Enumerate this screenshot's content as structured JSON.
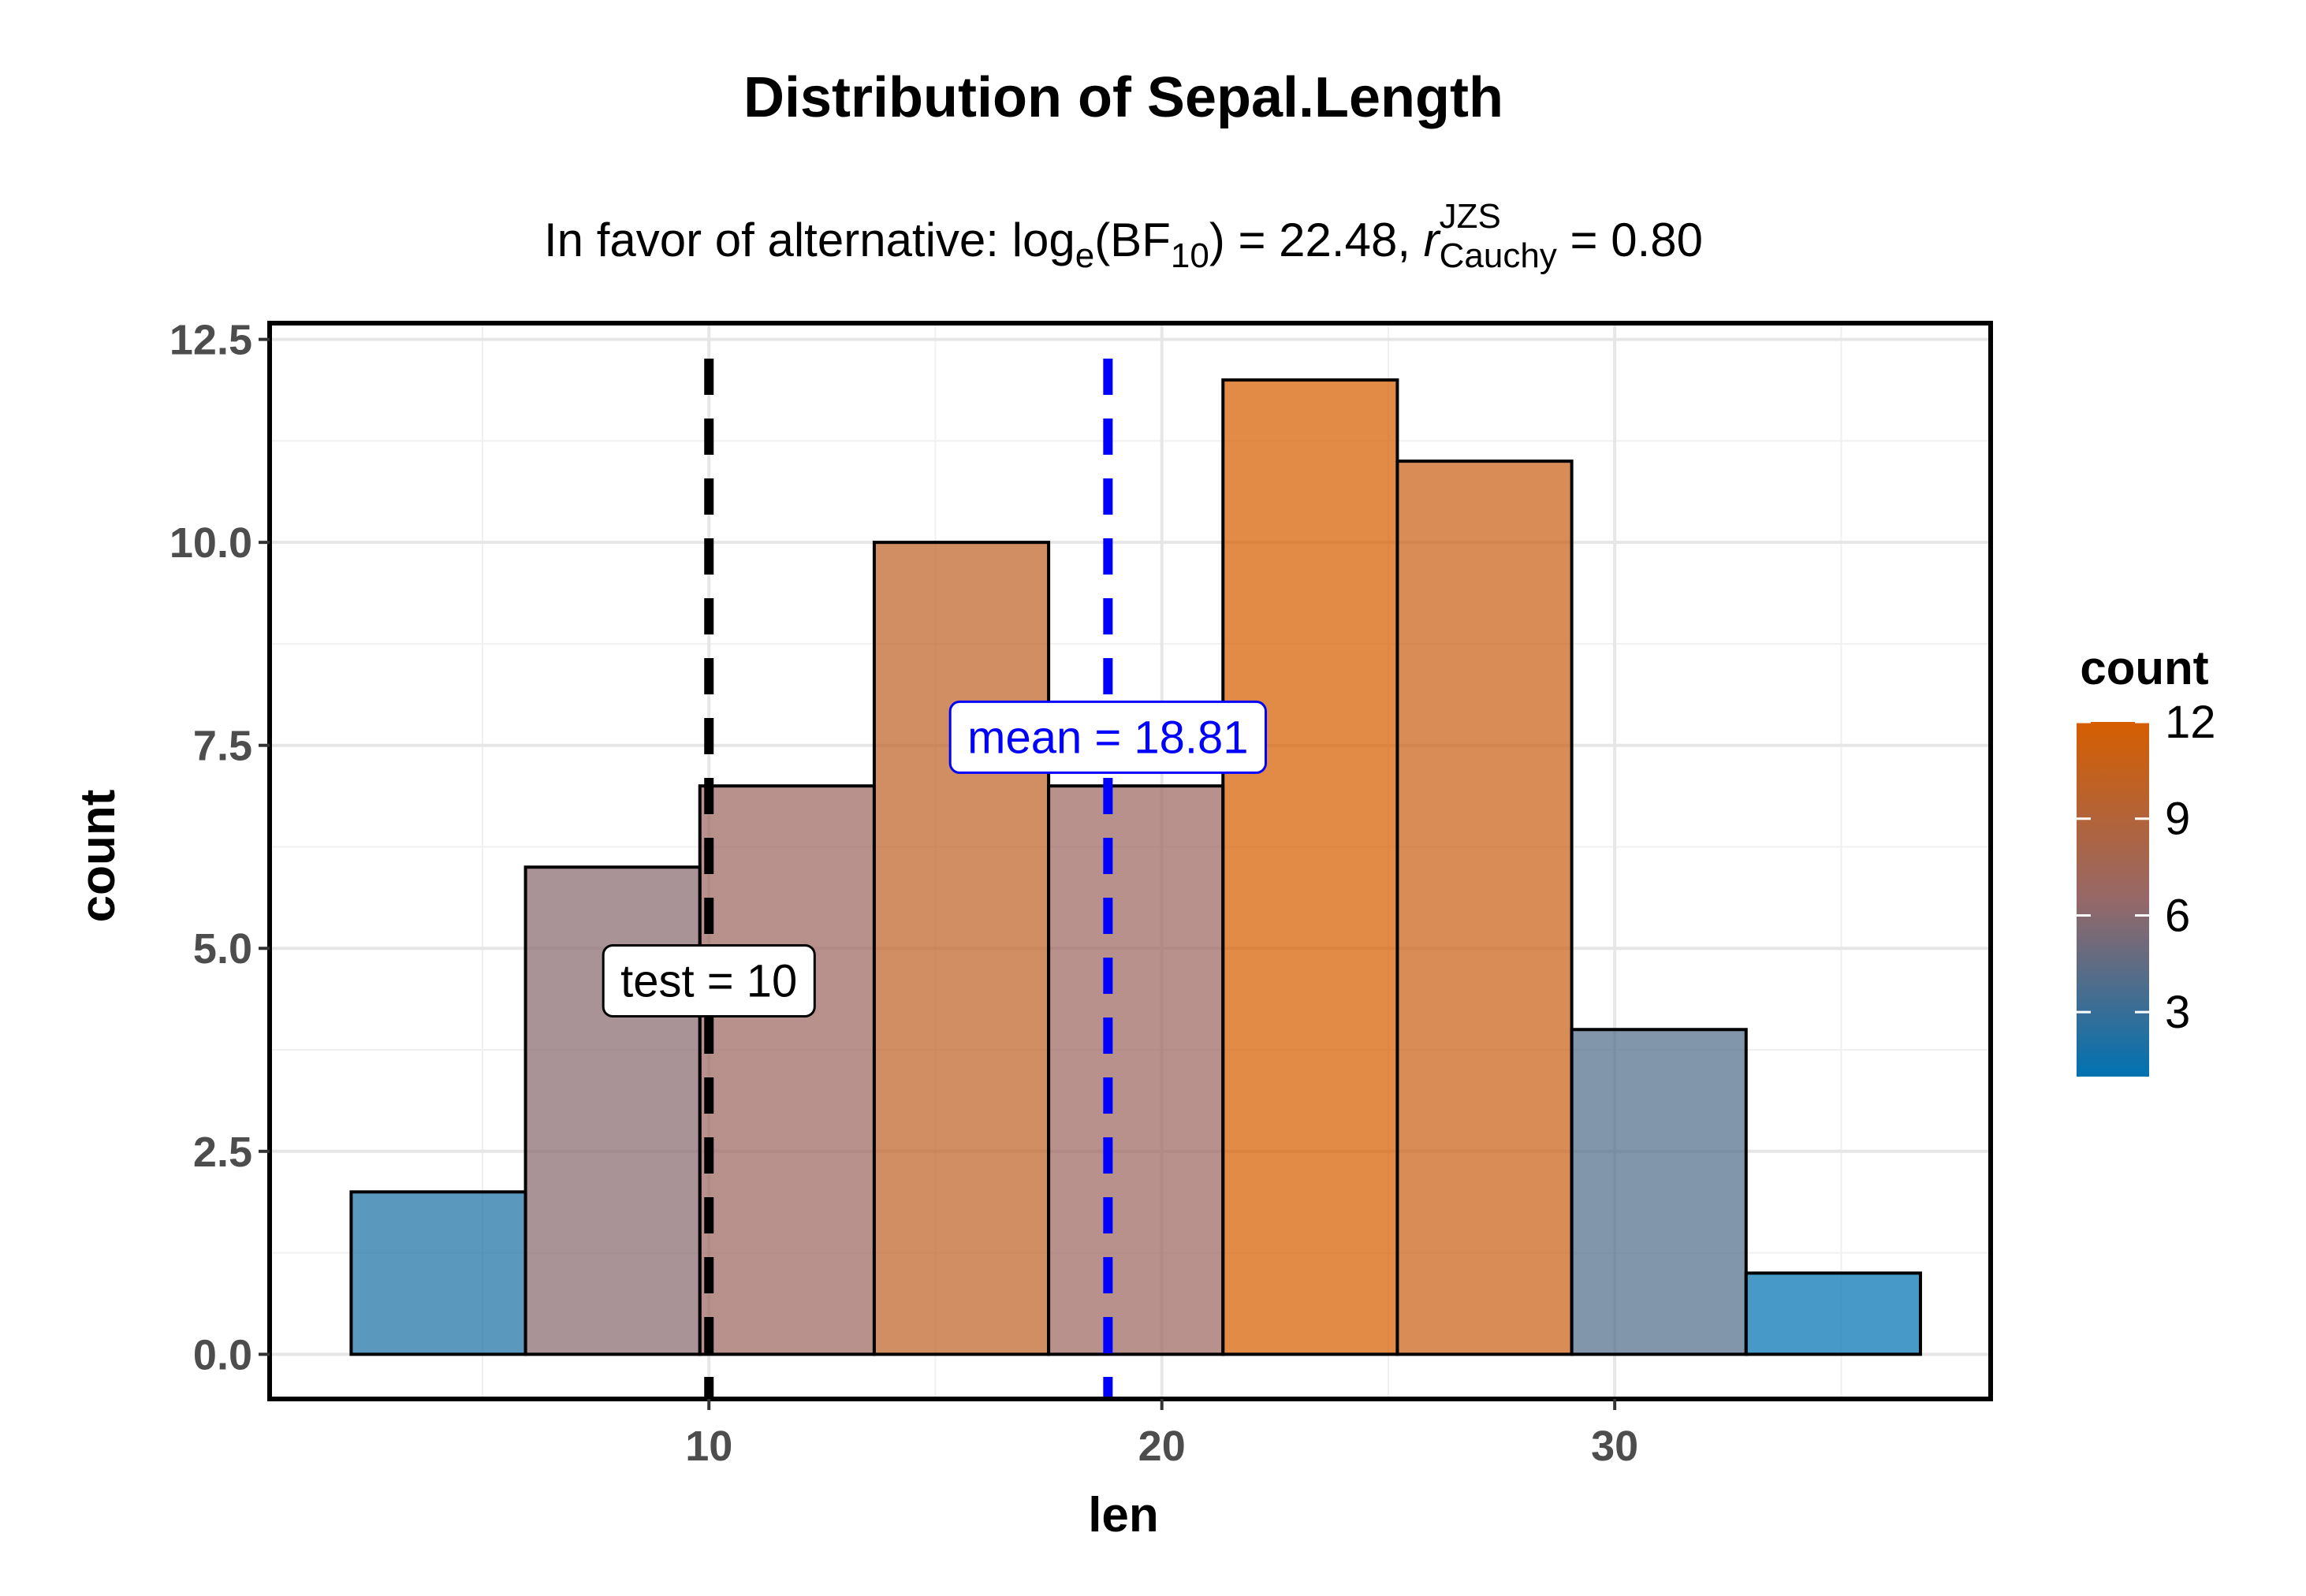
{
  "chart_data": {
    "type": "bar",
    "title": "Distribution of Sepal.Length",
    "subtitle": {
      "prefix": "In favor of alternative: log",
      "log_sub": "e",
      "bf_open": "(BF",
      "bf_sub": "10",
      "bf_close": ") = 22.48, ",
      "r_symbol": "r",
      "r_sup": "JZS",
      "r_sub": "Cauchy",
      "r_value": " = 0.80"
    },
    "xlabel": "len",
    "ylabel": "count",
    "bins": [
      {
        "left": 2.1,
        "right": 5.95,
        "count": 2
      },
      {
        "left": 5.95,
        "right": 9.8,
        "count": 6
      },
      {
        "left": 9.8,
        "right": 13.65,
        "count": 7
      },
      {
        "left": 13.65,
        "right": 17.5,
        "count": 10
      },
      {
        "left": 17.5,
        "right": 21.35,
        "count": 7
      },
      {
        "left": 21.35,
        "right": 25.2,
        "count": 12
      },
      {
        "left": 25.2,
        "right": 29.05,
        "count": 11
      },
      {
        "left": 29.05,
        "right": 32.9,
        "count": 4
      },
      {
        "left": 32.9,
        "right": 36.75,
        "count": 1
      }
    ],
    "xlim": [
      0.3,
      38.3
    ],
    "ylim": [
      -0.55,
      12.7
    ],
    "x_ticks": [
      {
        "value": 10,
        "label": "10"
      },
      {
        "value": 20,
        "label": "20"
      },
      {
        "value": 30,
        "label": "30"
      }
    ],
    "y_ticks": [
      {
        "value": 0,
        "label": "0.0"
      },
      {
        "value": 2.5,
        "label": "2.5"
      },
      {
        "value": 5,
        "label": "5.0"
      },
      {
        "value": 7.5,
        "label": "7.5"
      },
      {
        "value": 10,
        "label": "10.0"
      },
      {
        "value": 12.5,
        "label": "12.5"
      }
    ],
    "grid": true,
    "test_line": {
      "value": 10,
      "color": "#000000",
      "label": "test = 10",
      "label_y": 4.6
    },
    "mean_line": {
      "value": 18.81,
      "color": "#0000ff",
      "label": "mean = 18.81",
      "label_y": 7.6
    },
    "legend": {
      "title": "count",
      "placement": "right",
      "low_color": "#0072b2",
      "mid_color": "#966868",
      "high_color": "#d55e00",
      "range": [
        1,
        12
      ],
      "ticks": [
        {
          "value": 3,
          "label": "3"
        },
        {
          "value": 6,
          "label": "6"
        },
        {
          "value": 9,
          "label": "9"
        },
        {
          "value": 12,
          "label": "12"
        }
      ]
    }
  }
}
